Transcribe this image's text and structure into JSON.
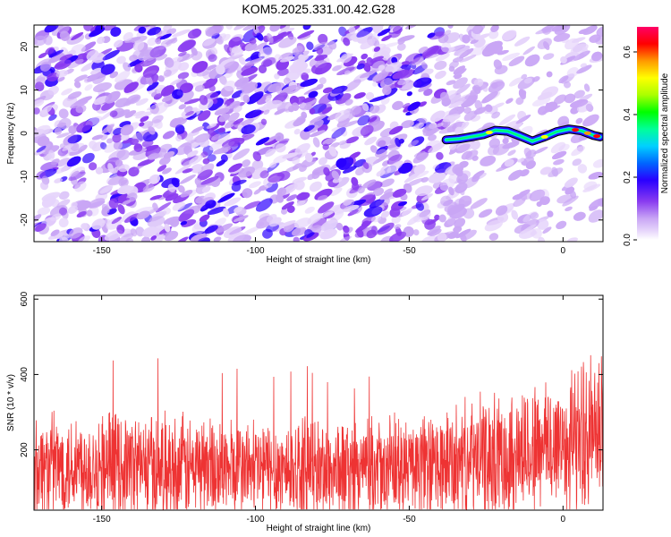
{
  "title": "KOM5.2025.331.00.42.G28",
  "colors": {
    "snr_line": "#ee3333",
    "colormap": [
      "#ffffff",
      "#e6d4fb",
      "#c9a6f5",
      "#8a3cf0",
      "#2a00ff",
      "#00a0ff",
      "#00e5c0",
      "#00ff00",
      "#c8ff00",
      "#ffff00",
      "#ff9900",
      "#ff0000",
      "#ff0066"
    ]
  },
  "chart_data": [
    {
      "type": "heatmap",
      "xlabel": "Height of straight line (km)",
      "ylabel": "Frequency (Hz)",
      "xlim": [
        -172,
        13
      ],
      "ylim": [
        -25,
        25
      ],
      "xticks": [
        -150,
        -100,
        -50,
        0
      ],
      "yticks": [
        -20,
        -10,
        0,
        10,
        20
      ],
      "colorbar": {
        "label": "Normalized spectral amplitude",
        "range": [
          0,
          0.68
        ],
        "ticks": [
          0.0,
          0.2,
          0.4,
          0.6
        ]
      },
      "signal_trace": {
        "x": [
          -38,
          -34,
          -30,
          -26,
          -22,
          -18,
          -14,
          -10,
          -6,
          -2,
          2,
          6,
          10,
          12
        ],
        "y": [
          -1.5,
          -1.3,
          -0.8,
          -0.3,
          0.7,
          0.5,
          -0.6,
          -1.8,
          -0.8,
          0.4,
          1.0,
          0.6,
          -0.5,
          -0.8
        ]
      }
    },
    {
      "type": "line",
      "xlabel": "Height of straight line (km)",
      "ylabel": "SNR (10 * v/v)",
      "xlim": [
        -172,
        13
      ],
      "ylim": [
        40,
        610
      ],
      "xticks": [
        -150,
        -100,
        -50,
        0
      ],
      "yticks": [
        200,
        400,
        600
      ],
      "envelope": {
        "x": [
          -172,
          -150,
          -120,
          -100,
          -80,
          -60,
          -40,
          -20,
          0,
          13
        ],
        "mean": [
          155,
          160,
          152,
          150,
          148,
          145,
          155,
          185,
          220,
          250
        ],
        "spread": [
          120,
          130,
          125,
          120,
          125,
          120,
          130,
          150,
          170,
          190
        ]
      }
    }
  ]
}
